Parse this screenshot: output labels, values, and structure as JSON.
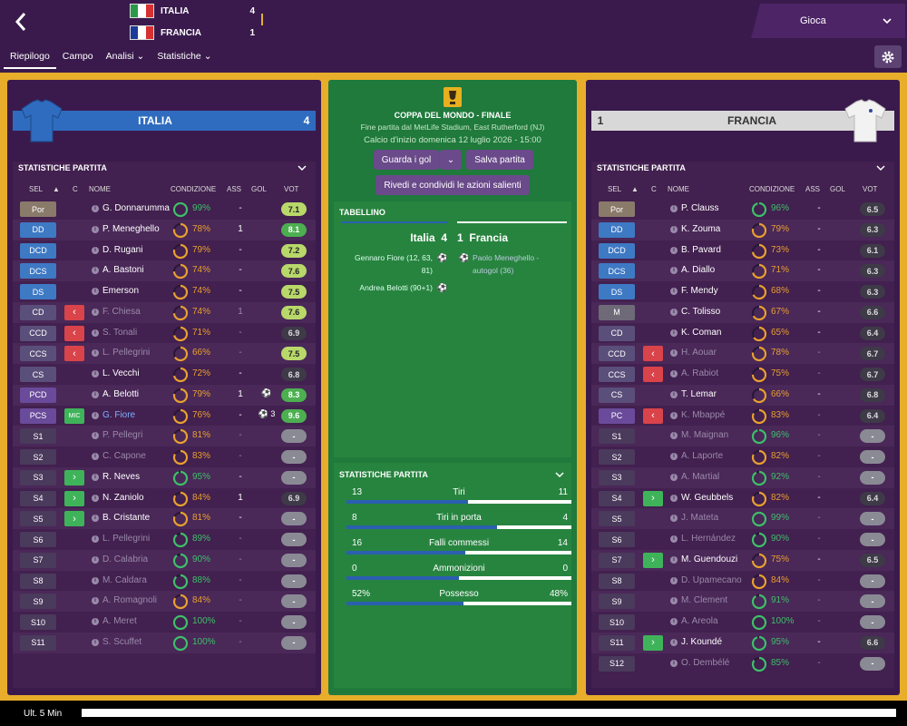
{
  "header": {
    "back_icon": "arrow-left-icon",
    "scoreboard": [
      {
        "team": "ITALIA",
        "score": "4",
        "flag": [
          "#2a9a4a",
          "#ffffff",
          "#d83030"
        ]
      },
      {
        "team": "FRANCIA",
        "score": "1",
        "flag": [
          "#1c3a9a",
          "#ffffff",
          "#d83030"
        ]
      }
    ],
    "play_button": "Gioca",
    "tabs": [
      {
        "label": "Riepilogo",
        "active": true
      },
      {
        "label": "Campo",
        "active": false
      },
      {
        "label": "Analisi",
        "dropdown": true
      },
      {
        "label": "Statistiche",
        "dropdown": true
      }
    ]
  },
  "match": {
    "competition": "COPPA DEL MONDO - FINALE",
    "venue_line": "Fine partita dal MetLife Stadium, East Rutherford (NJ)",
    "kickoff_line": "Calcio d'inizio domenica 12 luglio 2026 - 15:00",
    "buttons": {
      "watch": "Guarda i gol",
      "save": "Salva partita",
      "review": "Rivedi e condividi le azioni salienti"
    },
    "summary": {
      "title": "TABELLINO",
      "home": "Italia",
      "home_score": "4",
      "away": "Francia",
      "away_score": "1",
      "home_scorers": [
        "Gennaro Fiore (12, 63,",
        "81)",
        "Andrea Belotti (90+1)"
      ],
      "away_scorers": [
        "Paolo Meneghello -",
        "autogol (36)"
      ]
    },
    "stats": {
      "title": "STATISTICHE PARTITA",
      "rows": [
        {
          "label": "Tiri",
          "home": "13",
          "away": "11",
          "home_share": 0.54
        },
        {
          "label": "Tiri in porta",
          "home": "8",
          "away": "4",
          "home_share": 0.67
        },
        {
          "label": "Falli commessi",
          "home": "16",
          "away": "14",
          "home_share": 0.53
        },
        {
          "label": "Ammonizioni",
          "home": "0",
          "away": "0",
          "home_share": 0.5
        },
        {
          "label": "Possesso",
          "home": "52%",
          "away": "48%",
          "home_share": 0.52
        }
      ]
    }
  },
  "columns": {
    "sel": "SEL",
    "c": "C",
    "name": "NOME",
    "cond": "CONDIZIONE",
    "ass": "ASS",
    "gol": "GOL",
    "vot": "VOT"
  },
  "home_team": {
    "name": "ITALIA",
    "score": "4",
    "shirt_color": "#2f6cbf",
    "section_title": "STATISTICHE PARTITA",
    "players": [
      {
        "pos": "Por",
        "pk": "gk",
        "c": "",
        "name": "G. Donnarumma",
        "dim": false,
        "cond": "99%",
        "cl": 0.99,
        "ass": "-",
        "gol": "",
        "vot": "7.1",
        "vk": "g1"
      },
      {
        "pos": "DD",
        "pk": "def",
        "c": "",
        "name": "P. Meneghello",
        "dim": false,
        "cond": "78%",
        "cl": 0.78,
        "ass": "1",
        "gol": "",
        "vot": "8.1",
        "vk": "g2"
      },
      {
        "pos": "DCD",
        "pk": "def",
        "c": "",
        "name": "D. Rugani",
        "dim": false,
        "cond": "79%",
        "cl": 0.79,
        "ass": "-",
        "gol": "",
        "vot": "7.2",
        "vk": "g1"
      },
      {
        "pos": "DCS",
        "pk": "def",
        "c": "",
        "name": "A. Bastoni",
        "dim": false,
        "cond": "74%",
        "cl": 0.74,
        "ass": "-",
        "gol": "",
        "vot": "7.6",
        "vk": "g1"
      },
      {
        "pos": "DS",
        "pk": "def",
        "c": "",
        "name": "Emerson",
        "dim": false,
        "cond": "74%",
        "cl": 0.74,
        "ass": "-",
        "gol": "",
        "vot": "7.5",
        "vk": "g1"
      },
      {
        "pos": "CD",
        "pk": "mid",
        "c": "red",
        "name": "F. Chiesa",
        "dim": true,
        "cond": "74%",
        "cl": 0.74,
        "ass": "1",
        "gol": "",
        "vot": "7.6",
        "vk": "g1"
      },
      {
        "pos": "CCD",
        "pk": "mid",
        "c": "red",
        "name": "S. Tonali",
        "dim": true,
        "cond": "71%",
        "cl": 0.71,
        "ass": "-",
        "gol": "",
        "vot": "6.9",
        "vk": "gray"
      },
      {
        "pos": "CCS",
        "pk": "mid",
        "c": "red",
        "name": "L. Pellegrini",
        "dim": true,
        "cond": "66%",
        "cl": 0.66,
        "ass": "-",
        "gol": "",
        "vot": "7.5",
        "vk": "g1"
      },
      {
        "pos": "CS",
        "pk": "mid",
        "c": "",
        "name": "L. Vecchi",
        "dim": false,
        "cond": "72%",
        "cl": 0.72,
        "ass": "-",
        "gol": "",
        "vot": "6.8",
        "vk": "gray"
      },
      {
        "pos": "PCD",
        "pk": "att",
        "c": "",
        "name": "A. Belotti",
        "dim": false,
        "cond": "79%",
        "cl": 0.79,
        "ass": "1",
        "gol": "⚽",
        "vot": "8.3",
        "vk": "g2"
      },
      {
        "pos": "PCS",
        "pk": "att",
        "c": "mic",
        "name": "G. Fiore",
        "dim": false,
        "blue": true,
        "cond": "76%",
        "cl": 0.76,
        "ass": "-",
        "gol": "⚽ 3",
        "vot": "9.6",
        "vk": "g2"
      },
      {
        "pos": "S1",
        "pk": "sub-p",
        "c": "",
        "name": "P. Pellegri",
        "dim": true,
        "cond": "81%",
        "cl": 0.81,
        "ass": "-",
        "gol": "",
        "vot": "-",
        "vk": "none"
      },
      {
        "pos": "S2",
        "pk": "sub-p",
        "c": "",
        "name": "C. Capone",
        "dim": true,
        "cond": "83%",
        "cl": 0.83,
        "ass": "-",
        "gol": "",
        "vot": "-",
        "vk": "none"
      },
      {
        "pos": "S3",
        "pk": "sub-p",
        "c": "green",
        "name": "R. Neves",
        "dim": false,
        "cond": "95%",
        "cl": 0.95,
        "ass": "-",
        "gol": "",
        "vot": "-",
        "vk": "none"
      },
      {
        "pos": "S4",
        "pk": "sub-p",
        "c": "green",
        "name": "N. Zaniolo",
        "dim": false,
        "cond": "84%",
        "cl": 0.84,
        "ass": "1",
        "gol": "",
        "vot": "6.9",
        "vk": "gray"
      },
      {
        "pos": "S5",
        "pk": "sub-p",
        "c": "green",
        "name": "B. Cristante",
        "dim": false,
        "cond": "81%",
        "cl": 0.81,
        "ass": "-",
        "gol": "",
        "vot": "-",
        "vk": "none"
      },
      {
        "pos": "S6",
        "pk": "sub-p",
        "c": "",
        "name": "L. Pellegrini",
        "dim": true,
        "cond": "89%",
        "cl": 0.89,
        "ass": "-",
        "gol": "",
        "vot": "-",
        "vk": "none"
      },
      {
        "pos": "S7",
        "pk": "sub-p",
        "c": "",
        "name": "D. Calabria",
        "dim": true,
        "cond": "90%",
        "cl": 0.9,
        "ass": "-",
        "gol": "",
        "vot": "-",
        "vk": "none"
      },
      {
        "pos": "S8",
        "pk": "sub-p",
        "c": "",
        "name": "M. Caldara",
        "dim": true,
        "cond": "88%",
        "cl": 0.88,
        "ass": "-",
        "gol": "",
        "vot": "-",
        "vk": "none"
      },
      {
        "pos": "S9",
        "pk": "sub-p",
        "c": "",
        "name": "A. Romagnoli",
        "dim": true,
        "cond": "84%",
        "cl": 0.84,
        "ass": "-",
        "gol": "",
        "vot": "-",
        "vk": "none"
      },
      {
        "pos": "S10",
        "pk": "sub-p",
        "c": "",
        "name": "A. Meret",
        "dim": true,
        "cond": "100%",
        "cl": 1.0,
        "ass": "-",
        "gol": "",
        "vot": "-",
        "vk": "none"
      },
      {
        "pos": "S11",
        "pk": "sub-p",
        "c": "",
        "name": "S. Scuffet",
        "dim": true,
        "cond": "100%",
        "cl": 1.0,
        "ass": "-",
        "gol": "",
        "vot": "-",
        "vk": "none"
      }
    ]
  },
  "away_team": {
    "name": "FRANCIA",
    "score": "1",
    "shirt_color": "#f0f0f0",
    "section_title": "STATISTICHE PARTITA",
    "players": [
      {
        "pos": "Por",
        "pk": "gk",
        "c": "",
        "name": "P. Clauss",
        "dim": false,
        "cond": "96%",
        "cl": 0.96,
        "ass": "-",
        "gol": "",
        "vot": "6.5",
        "vk": "gray"
      },
      {
        "pos": "DD",
        "pk": "def",
        "c": "",
        "name": "K. Zouma",
        "dim": false,
        "cond": "79%",
        "cl": 0.79,
        "ass": "-",
        "gol": "",
        "vot": "6.3",
        "vk": "gray"
      },
      {
        "pos": "DCD",
        "pk": "def",
        "c": "",
        "name": "B. Pavard",
        "dim": false,
        "cond": "73%",
        "cl": 0.73,
        "ass": "-",
        "gol": "",
        "vot": "6.1",
        "vk": "gray"
      },
      {
        "pos": "DCS",
        "pk": "def",
        "c": "",
        "name": "A. Diallo",
        "dim": false,
        "cond": "71%",
        "cl": 0.71,
        "ass": "-",
        "gol": "",
        "vot": "6.3",
        "vk": "gray"
      },
      {
        "pos": "DS",
        "pk": "def",
        "c": "",
        "name": "F. Mendy",
        "dim": false,
        "cond": "68%",
        "cl": 0.68,
        "ass": "-",
        "gol": "",
        "vot": "6.3",
        "vk": "gray"
      },
      {
        "pos": "M",
        "pk": "grey",
        "c": "",
        "name": "C. Tolisso",
        "dim": false,
        "cond": "67%",
        "cl": 0.67,
        "ass": "-",
        "gol": "",
        "vot": "6.6",
        "vk": "gray"
      },
      {
        "pos": "CD",
        "pk": "mid",
        "c": "",
        "name": "K. Coman",
        "dim": false,
        "cond": "65%",
        "cl": 0.65,
        "ass": "-",
        "gol": "",
        "vot": "6.4",
        "vk": "gray"
      },
      {
        "pos": "CCD",
        "pk": "mid",
        "c": "red",
        "name": "H. Aouar",
        "dim": true,
        "cond": "78%",
        "cl": 0.78,
        "ass": "-",
        "gol": "",
        "vot": "6.7",
        "vk": "gray"
      },
      {
        "pos": "CCS",
        "pk": "mid",
        "c": "red",
        "name": "A. Rabiot",
        "dim": true,
        "cond": "75%",
        "cl": 0.75,
        "ass": "-",
        "gol": "",
        "vot": "6.7",
        "vk": "gray"
      },
      {
        "pos": "CS",
        "pk": "mid",
        "c": "",
        "name": "T. Lemar",
        "dim": false,
        "cond": "66%",
        "cl": 0.66,
        "ass": "-",
        "gol": "",
        "vot": "6.8",
        "vk": "gray"
      },
      {
        "pos": "PC",
        "pk": "att",
        "c": "red",
        "name": "K. Mbappé",
        "dim": true,
        "cond": "83%",
        "cl": 0.83,
        "ass": "-",
        "gol": "",
        "vot": "6.4",
        "vk": "gray"
      },
      {
        "pos": "S1",
        "pk": "sub-p",
        "c": "",
        "name": "M. Maignan",
        "dim": true,
        "cond": "96%",
        "cl": 0.96,
        "ass": "-",
        "gol": "",
        "vot": "-",
        "vk": "none"
      },
      {
        "pos": "S2",
        "pk": "sub-p",
        "c": "",
        "name": "A. Laporte",
        "dim": true,
        "cond": "82%",
        "cl": 0.82,
        "ass": "-",
        "gol": "",
        "vot": "-",
        "vk": "none"
      },
      {
        "pos": "S3",
        "pk": "sub-p",
        "c": "",
        "name": "A. Martial",
        "dim": true,
        "cond": "92%",
        "cl": 0.92,
        "ass": "-",
        "gol": "",
        "vot": "-",
        "vk": "none"
      },
      {
        "pos": "S4",
        "pk": "sub-p",
        "c": "green",
        "name": "W. Geubbels",
        "dim": false,
        "cond": "82%",
        "cl": 0.82,
        "ass": "-",
        "gol": "",
        "vot": "6.4",
        "vk": "gray"
      },
      {
        "pos": "S5",
        "pk": "sub-p",
        "c": "",
        "name": "J. Mateta",
        "dim": true,
        "cond": "99%",
        "cl": 0.99,
        "ass": "-",
        "gol": "",
        "vot": "-",
        "vk": "none"
      },
      {
        "pos": "S6",
        "pk": "sub-p",
        "c": "",
        "name": "L. Hernández",
        "dim": true,
        "cond": "90%",
        "cl": 0.9,
        "ass": "-",
        "gol": "",
        "vot": "-",
        "vk": "none"
      },
      {
        "pos": "S7",
        "pk": "sub-p",
        "c": "green",
        "name": "M. Guendouzi",
        "dim": false,
        "cond": "75%",
        "cl": 0.75,
        "ass": "-",
        "gol": "",
        "vot": "6.5",
        "vk": "gray"
      },
      {
        "pos": "S8",
        "pk": "sub-p",
        "c": "",
        "name": "D. Upamecano",
        "dim": true,
        "cond": "84%",
        "cl": 0.84,
        "ass": "-",
        "gol": "",
        "vot": "-",
        "vk": "none"
      },
      {
        "pos": "S9",
        "pk": "sub-p",
        "c": "",
        "name": "M. Clement",
        "dim": true,
        "cond": "91%",
        "cl": 0.91,
        "ass": "-",
        "gol": "",
        "vot": "-",
        "vk": "none"
      },
      {
        "pos": "S10",
        "pk": "sub-p",
        "c": "",
        "name": "A. Areola",
        "dim": true,
        "cond": "100%",
        "cl": 1.0,
        "ass": "-",
        "gol": "",
        "vot": "-",
        "vk": "none"
      },
      {
        "pos": "S11",
        "pk": "sub-p",
        "c": "green",
        "name": "J. Koundé",
        "dim": false,
        "cond": "95%",
        "cl": 0.95,
        "ass": "-",
        "gol": "",
        "vot": "6.6",
        "vk": "gray"
      },
      {
        "pos": "S12",
        "pk": "sub-p",
        "c": "",
        "name": "O. Dembélé",
        "dim": true,
        "cond": "85%",
        "cl": 0.85,
        "ass": "-",
        "gol": "",
        "vot": "-",
        "vk": "none"
      }
    ]
  },
  "footer": {
    "label": "Ult. 5 Min"
  },
  "colors": {
    "background": "#3a1a4c",
    "frame": "#e8ad2a",
    "pitch": "#1f7a3c",
    "home": "#2f6cbf",
    "condition_ok": "#3fbf6a",
    "condition_tired": "#e8a030"
  }
}
